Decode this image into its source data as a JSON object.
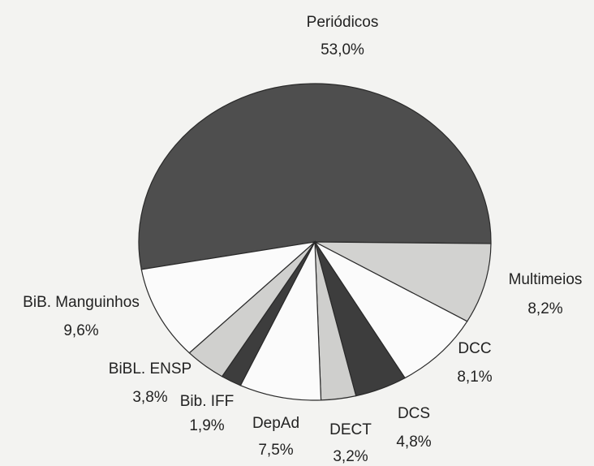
{
  "chart_data": {
    "type": "pie",
    "categories": [
      "Periódicos",
      "Multimeios",
      "DCC",
      "DCS",
      "DECT",
      "DepAd",
      "Bib. IFF",
      "BiBL. ENSP",
      "BiB. Manguinhos"
    ],
    "values": [
      53.0,
      8.2,
      8.1,
      4.8,
      3.2,
      7.5,
      1.9,
      3.8,
      9.6
    ],
    "value_labels": [
      "53,0%",
      "8,2%",
      "8,1%",
      "4,8%",
      "3,2%",
      "7,5%",
      "1,9%",
      "3,8%",
      "9,6%"
    ],
    "colors": [
      "#4e4e4e",
      "#d2d2d0",
      "#fbfbfb",
      "#3d3d3d",
      "#cfcfcd",
      "#fbfbfb",
      "#3d3d3d",
      "#d0d0ce",
      "#fbfbfb"
    ]
  }
}
